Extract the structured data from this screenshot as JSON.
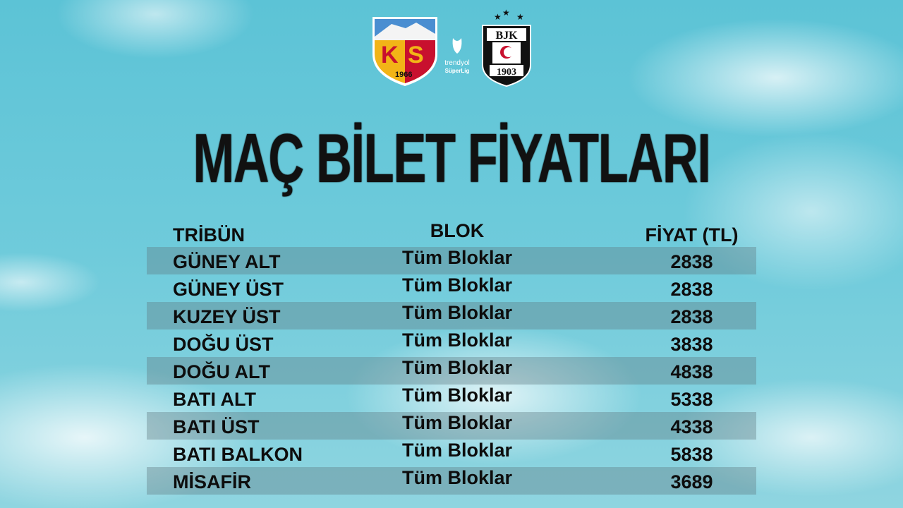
{
  "logos": {
    "home": {
      "name": "Kayserispor",
      "text": "KS",
      "year": "1966"
    },
    "league": {
      "text1": "trendyol",
      "text2": "SüperLig"
    },
    "away": {
      "name": "Beşiktaş",
      "text": "BJK",
      "year": "1903"
    }
  },
  "title": "MAÇ BİLET FİYATLARI",
  "table": {
    "headers": [
      "TRİBÜN",
      "BLOK",
      "FİYAT (TL)"
    ],
    "rows": [
      [
        "GÜNEY ALT",
        "Tüm Bloklar",
        "2838"
      ],
      [
        "GÜNEY ÜST",
        "Tüm Bloklar",
        "2838"
      ],
      [
        "KUZEY ÜST",
        "Tüm Bloklar",
        "2838"
      ],
      [
        "DOĞU ÜST",
        "Tüm Bloklar",
        "3838"
      ],
      [
        "DOĞU ALT",
        "Tüm Bloklar",
        "4838"
      ],
      [
        "BATI ALT",
        "Tüm Bloklar",
        "5338"
      ],
      [
        "BATI ÜST",
        "Tüm Bloklar",
        "4338"
      ],
      [
        "BATI BALKON",
        "Tüm Bloklar",
        "5838"
      ],
      [
        "MİSAFİR",
        "Tüm Bloklar",
        "3689"
      ]
    ]
  },
  "colors": {
    "stripe": "#5f7882",
    "text": "#0d0d0d",
    "ks_yellow": "#f2b417",
    "ks_red": "#c8102e"
  }
}
